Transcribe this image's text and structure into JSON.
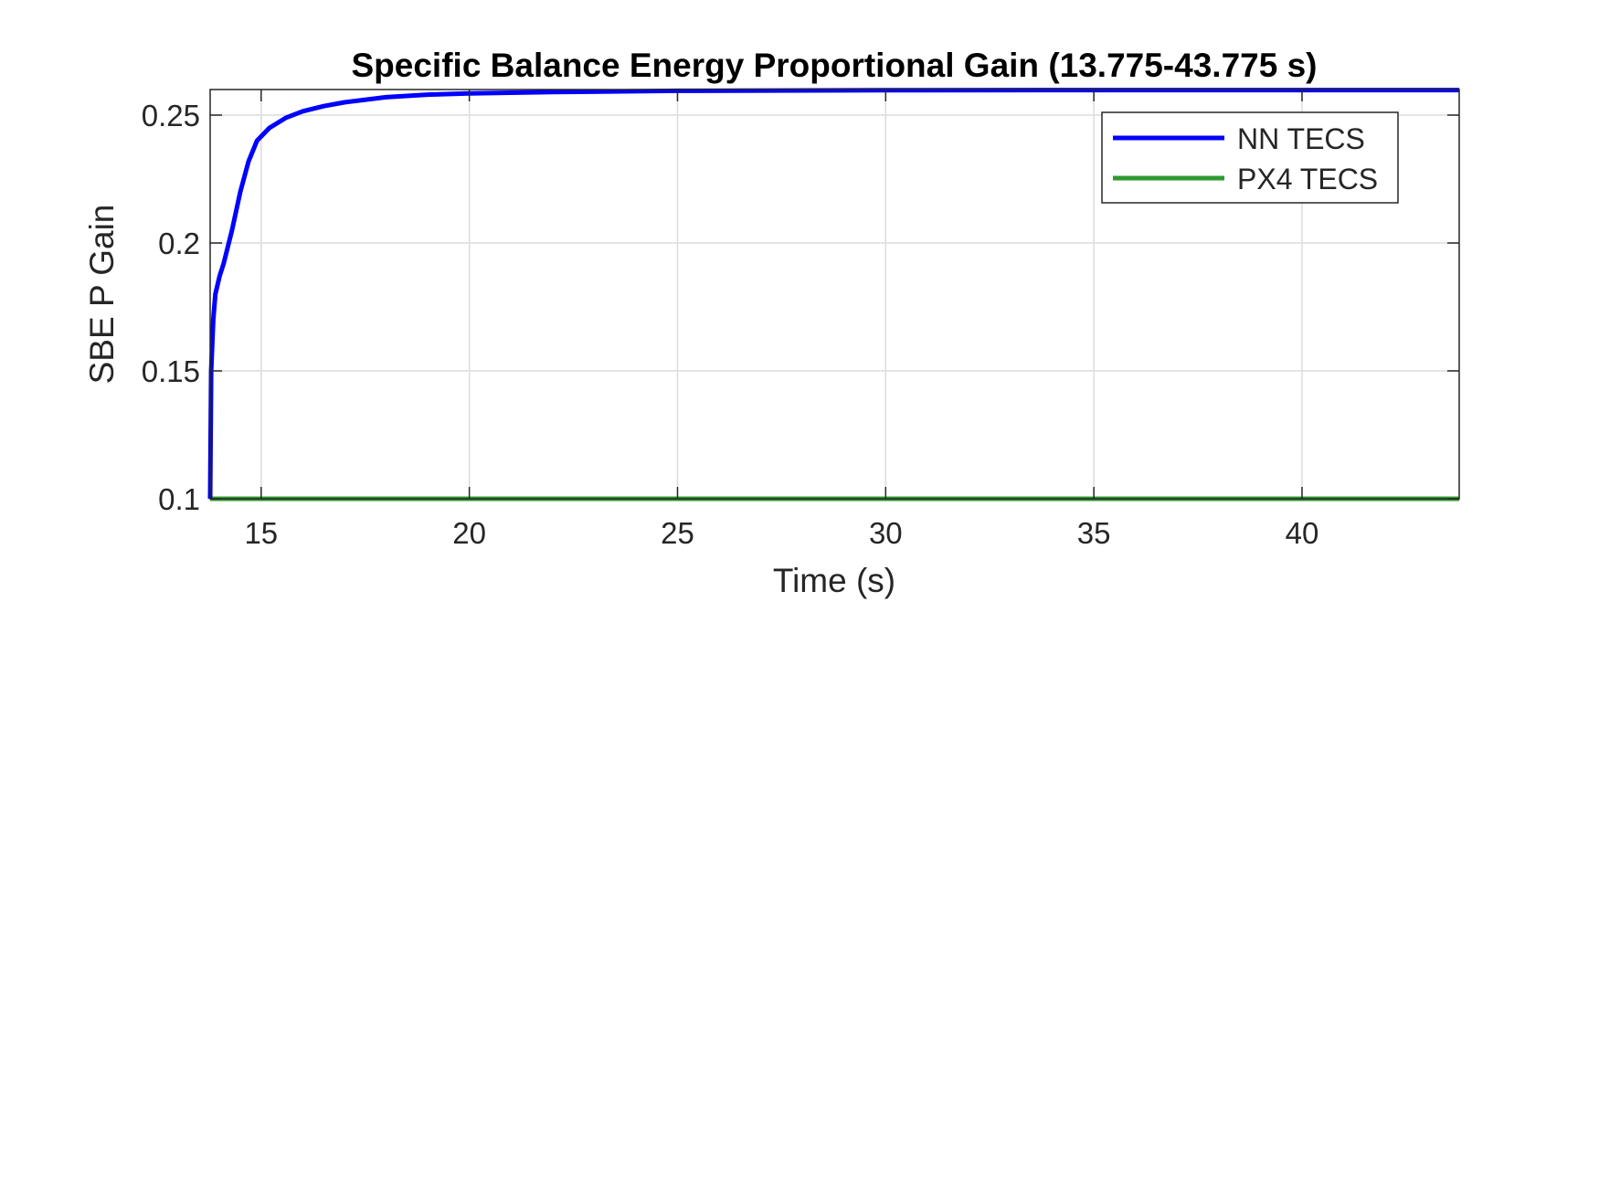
{
  "chart_data": {
    "type": "line",
    "title": "Specific Balance Energy Proportional Gain (13.775-43.775 s)",
    "xlabel": "Time (s)",
    "ylabel": "SBE P Gain",
    "xlim": [
      13.775,
      43.775
    ],
    "ylim": [
      0.1,
      0.26
    ],
    "xticks": [
      15,
      20,
      25,
      30,
      35,
      40
    ],
    "yticks": [
      0.1,
      0.15,
      0.2,
      0.25
    ],
    "xtick_labels": [
      "15",
      "20",
      "25",
      "30",
      "35",
      "40"
    ],
    "ytick_labels": [
      "0.1",
      "0.15",
      "0.2",
      "0.25"
    ],
    "grid": true,
    "legend_position": "top-right",
    "series": [
      {
        "name": "NN TECS",
        "color": "#0000ff",
        "x": [
          13.775,
          13.8,
          13.85,
          13.9,
          14.0,
          14.1,
          14.3,
          14.5,
          14.7,
          14.9,
          15.2,
          15.6,
          16.0,
          16.5,
          17.0,
          18.0,
          19.0,
          20.0,
          22.0,
          25.0,
          30.0,
          35.0,
          40.0,
          43.775
        ],
        "y": [
          0.1,
          0.15,
          0.17,
          0.18,
          0.187,
          0.192,
          0.205,
          0.22,
          0.232,
          0.24,
          0.245,
          0.249,
          0.2515,
          0.2535,
          0.255,
          0.257,
          0.258,
          0.2585,
          0.259,
          0.2595,
          0.2597,
          0.2598,
          0.2598,
          0.2598
        ]
      },
      {
        "name": "PX4 TECS",
        "color": "#2e9a2e",
        "x": [
          13.775,
          43.775
        ],
        "y": [
          0.1,
          0.1
        ]
      }
    ]
  }
}
